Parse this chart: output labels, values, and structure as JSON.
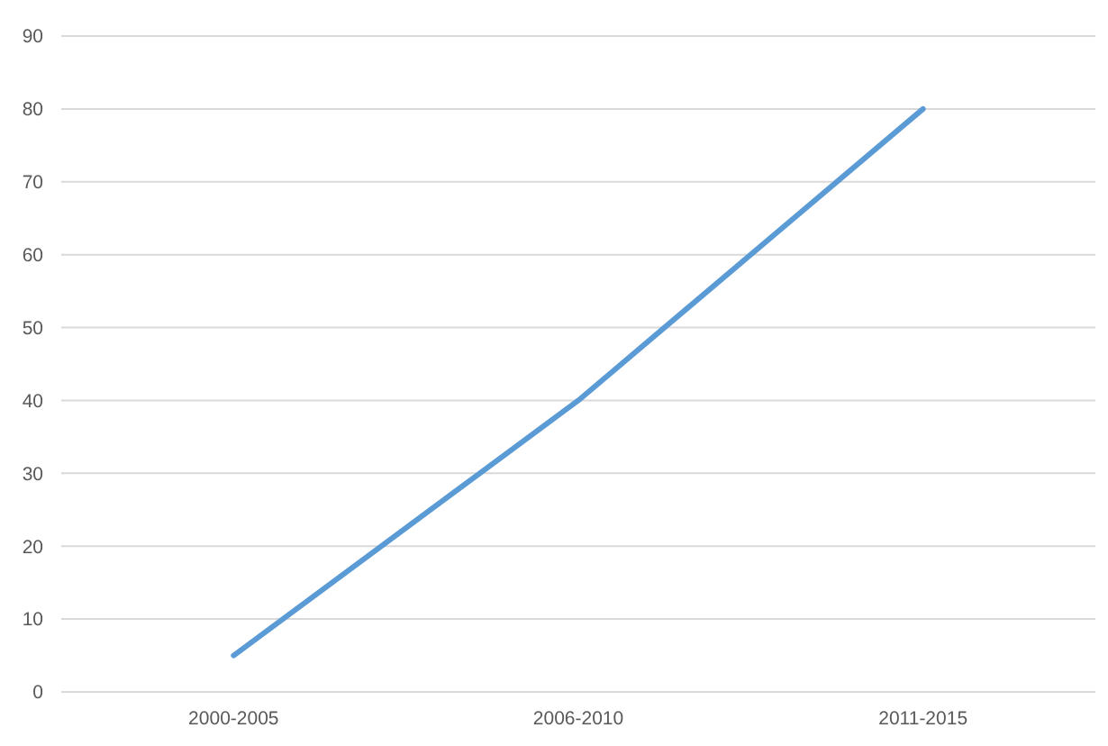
{
  "chart_data": {
    "type": "line",
    "categories": [
      "2000-2005",
      "2006-2010",
      "2011-2015"
    ],
    "series": [
      {
        "color": "#5b9bd5",
        "values": [
          5,
          40,
          80
        ]
      }
    ],
    "ylim": [
      0,
      90
    ],
    "yticks": [
      0,
      10,
      20,
      30,
      40,
      50,
      60,
      70,
      80,
      90
    ],
    "grid": "y",
    "line_style": "solid"
  }
}
